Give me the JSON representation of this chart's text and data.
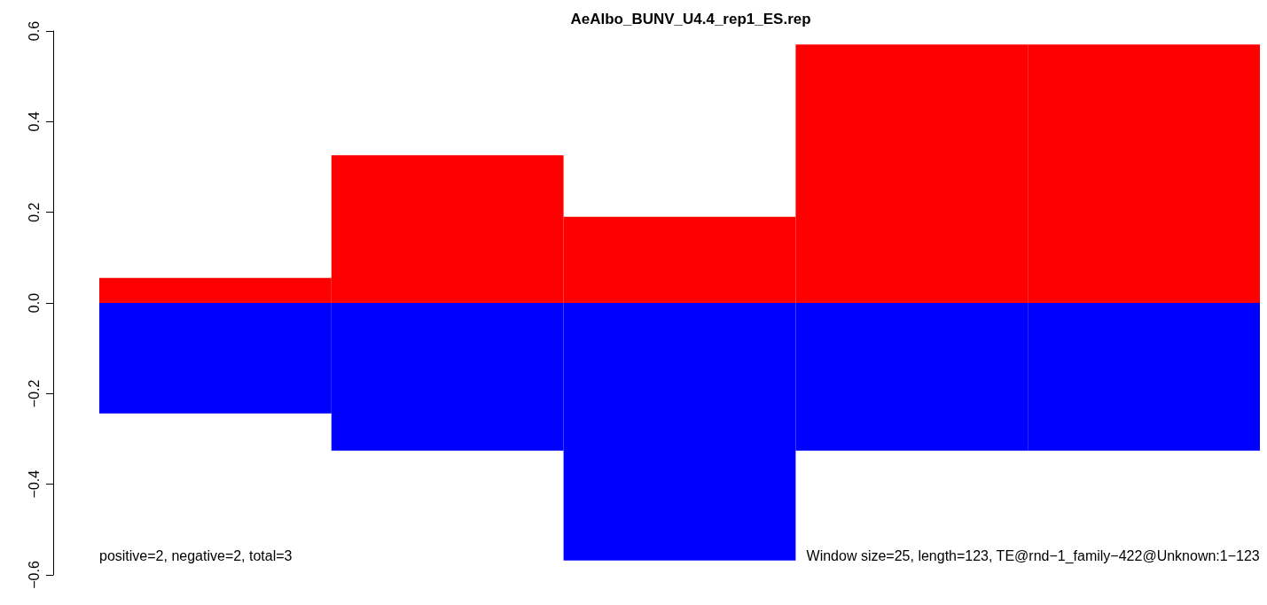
{
  "chart_data": {
    "type": "bar",
    "title": "AeAlbo_BUNV_U4.4_rep1_ES.rep",
    "categories": [
      null,
      null,
      null,
      null,
      null
    ],
    "stacked": true,
    "series": [
      {
        "color": "#ff0000",
        "values": [
          0.055,
          0.326,
          0.19,
          0.57,
          0.57
        ]
      },
      {
        "color": "#0000ff",
        "values": [
          -0.244,
          -0.326,
          -0.568,
          -0.326,
          -0.326
        ]
      }
    ],
    "ylim": [
      -0.6,
      0.6
    ],
    "yticks": [
      {
        "value": -0.6,
        "label": "−0.6"
      },
      {
        "value": -0.4,
        "label": "−0.4"
      },
      {
        "value": -0.2,
        "label": "−0.2"
      },
      {
        "value": 0,
        "label": "0.0"
      },
      {
        "value": 0.2,
        "label": "0.2"
      },
      {
        "value": 0.4,
        "label": "0.4"
      },
      {
        "value": 0.6,
        "label": "0.6"
      }
    ],
    "tick_labels": "y",
    "grid": false,
    "annotations": [
      "positive=2, negative=2, total=3",
      "Window size=25, length=123, TE@rnd−1_family−422@Unknown:1−123"
    ]
  }
}
